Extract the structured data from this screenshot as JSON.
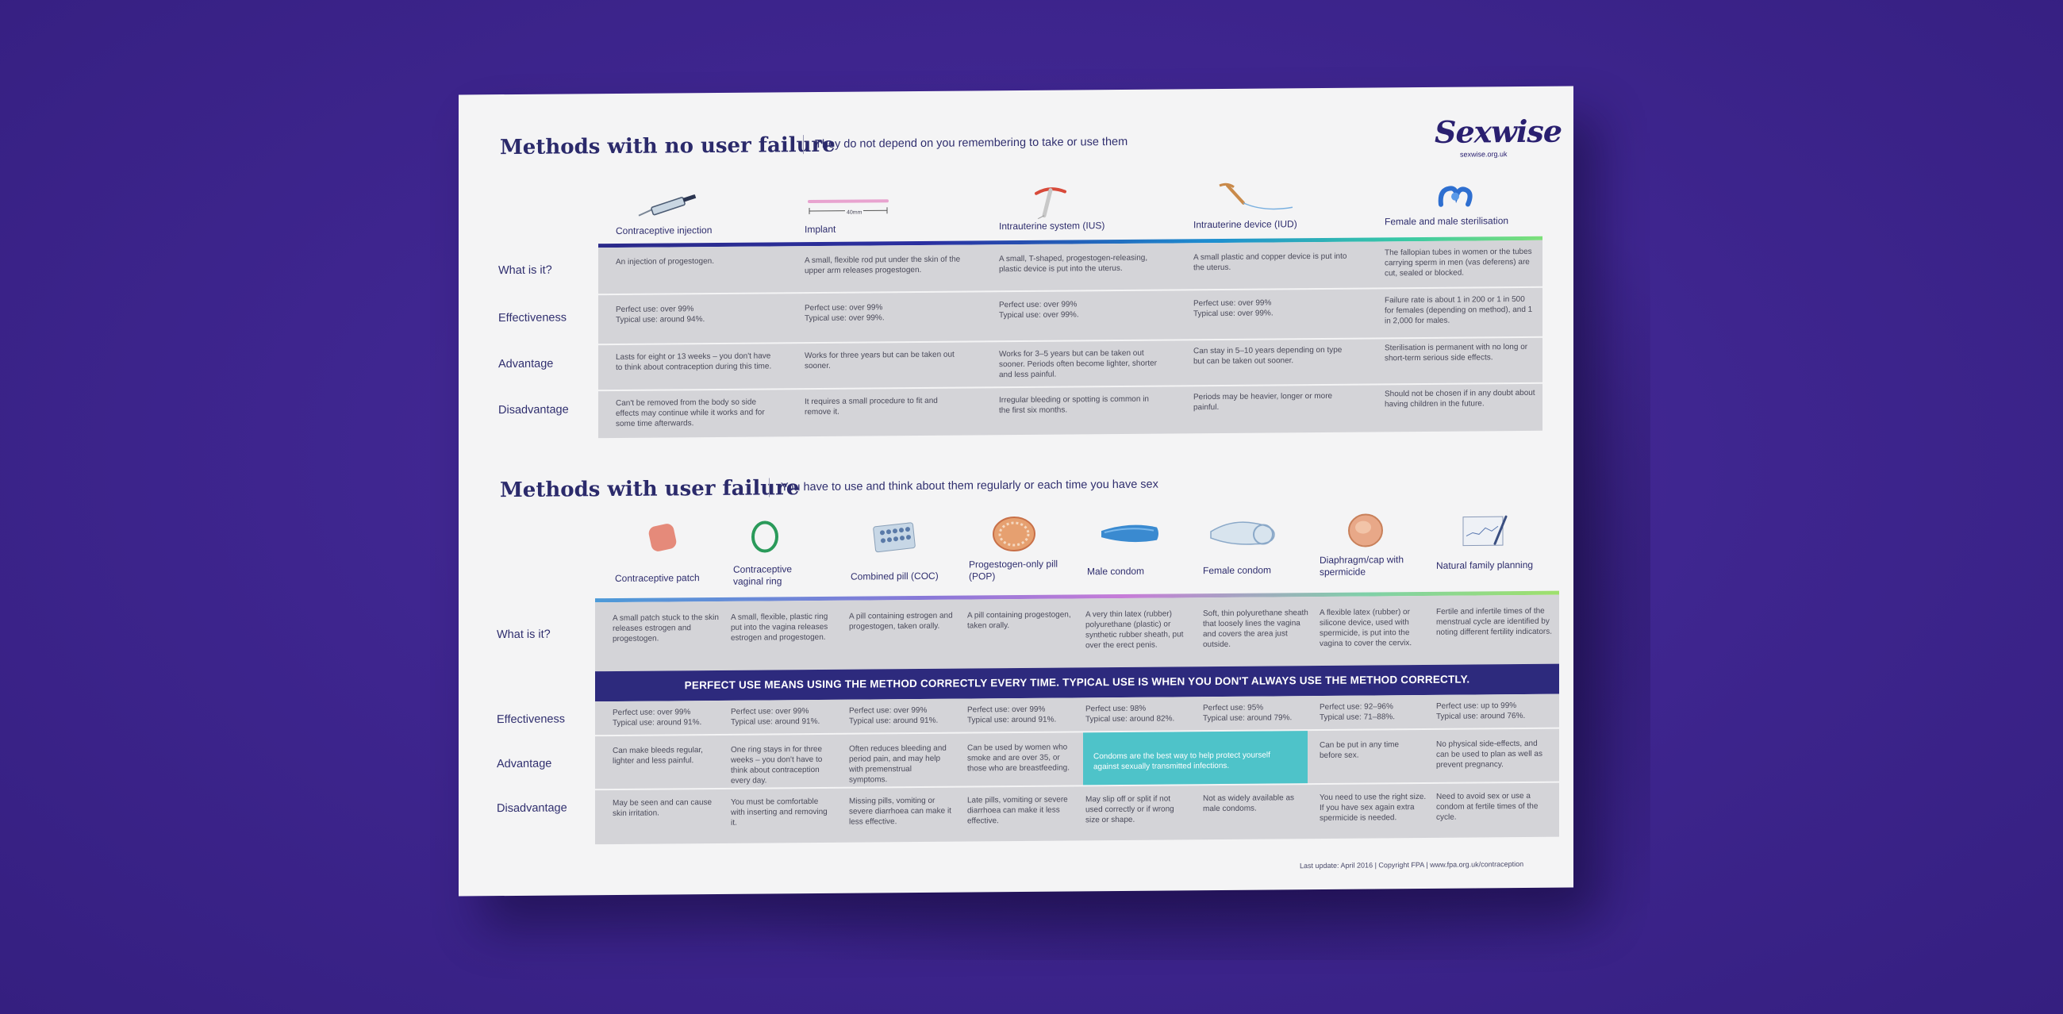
{
  "logo": {
    "text": "Sexwise",
    "url": "sexwise.org.uk"
  },
  "section1": {
    "title": "Methods with no user failure",
    "subtitle": "They do not depend on you remembering to take or use them",
    "columns": [
      "Contraceptive injection",
      "Implant",
      "Intrauterine system (IUS)",
      "Intrauterine device (IUD)",
      "Female and male sterilisation"
    ],
    "implant_measure": "40mm",
    "rows": [
      {
        "label": "What is it?",
        "cells": [
          "An injection of progestogen.",
          "A small, flexible rod put under the skin of the upper arm releases progestogen.",
          "A small, T-shaped, progestogen-releasing, plastic device is put into the uterus.",
          "A small plastic and copper device is put into the uterus.",
          "The fallopian tubes in women or the tubes carrying sperm in men (vas deferens) are cut, sealed or blocked."
        ]
      },
      {
        "label": "Effectiveness",
        "cells": [
          "Perfect use: over 99%\nTypical use: around 94%.",
          "Perfect use: over 99%\nTypical use: over 99%.",
          "Perfect use: over 99%\nTypical use: over 99%.",
          "Perfect use: over 99%\nTypical use: over 99%.",
          "Failure rate is about 1 in 200 or 1 in 500 for females (depending on method), and 1 in 2,000 for males."
        ]
      },
      {
        "label": "Advantage",
        "cells": [
          "Lasts for eight or 13 weeks – you don't have to think about contraception during this time.",
          "Works for three years but can be taken out sooner.",
          "Works for 3–5 years but can be taken out sooner. Periods often become lighter, shorter and less painful.",
          "Can stay in 5–10 years depending on type but can be taken out sooner.",
          "Sterilisation is permanent with no long or short-term serious side effects."
        ]
      },
      {
        "label": "Disadvantage",
        "cells": [
          "Can't be removed from the body so side effects may continue while it works and for some time afterwards.",
          "It requires a small procedure to fit and remove it.",
          "Irregular bleeding or spotting is common in the first six months.",
          "Periods may be heavier, longer or more painful.",
          "Should not be chosen if in any doubt about having children in the future."
        ]
      }
    ]
  },
  "section2": {
    "title": "Methods with user failure",
    "subtitle": "You have to use and think about them regularly or each time you have sex",
    "columns": [
      "Contraceptive patch",
      "Contraceptive vaginal ring",
      "Combined pill (COC)",
      "Progestogen-only pill (POP)",
      "Male condom",
      "Female condom",
      "Diaphragm/cap with spermicide",
      "Natural family planning"
    ],
    "what_label": "What is it?",
    "what_cells": [
      "A small patch stuck to the skin releases estrogen and progestogen.",
      "A small, flexible, plastic ring put into the vagina releases estrogen and progestogen.",
      "A pill containing estrogen and progestogen, taken orally.",
      "A pill containing progestogen, taken orally.",
      "A very thin latex (rubber) polyurethane (plastic) or synthetic rubber sheath, put over the erect penis.",
      "Soft, thin polyurethane sheath that loosely lines the vagina and covers the area just outside.",
      "A flexible latex (rubber) or silicone device, used with spermicide, is put into the vagina to cover the cervix.",
      "Fertile and infertile times of the menstrual cycle are identified by noting different fertility indicators."
    ],
    "banner": "PERFECT USE MEANS USING THE METHOD CORRECTLY EVERY TIME. TYPICAL USE IS WHEN YOU DON'T ALWAYS USE THE METHOD CORRECTLY.",
    "effectiveness_label": "Effectiveness",
    "effectiveness_cells": [
      "Perfect use: over 99%\nTypical use: around 91%.",
      "Perfect use: over 99%\nTypical use: around 91%.",
      "Perfect use: over 99%\nTypical use: around 91%.",
      "Perfect use: over 99%\nTypical use: around 91%.",
      "Perfect use: 98%\nTypical use: around 82%.",
      "Perfect use: 95%\nTypical use: around 79%.",
      "Perfect use: 92–96%\nTypical use: 71–88%.",
      "Perfect use: up to 99%\nTypical use: around 76%."
    ],
    "advantage_label": "Advantage",
    "advantage_cells": [
      "Can make bleeds regular, lighter and less painful.",
      "One ring stays in for three weeks – you don't have to think about contraception every day.",
      "Often reduces bleeding and period pain, and may help with premenstrual symptoms.",
      "Can be used by women who smoke and are over 35, or those who are breastfeeding.",
      "Condoms are the best way to help protect yourself against sexually transmitted infections.",
      "Can be put in any time before sex.",
      "No physical side-effects, and can be used to plan as well as prevent pregnancy."
    ],
    "disadvantage_label": "Disadvantage",
    "disadvantage_cells": [
      "May be seen and can cause skin irritation.",
      "You must be comfortable with inserting and removing it.",
      "Missing pills, vomiting or severe diarrhoea can make it less effective.",
      "Late pills, vomiting or severe diarrhoea can make it less effective.",
      "May slip off or split if not used correctly or if wrong size or shape.",
      "Not as widely available as male condoms.",
      "You need to use the right size. If you have sex again extra spermicide is needed.",
      "Need to avoid sex or use a condom at fertile times of the cycle."
    ]
  },
  "footer": "Last update: April 2016  |  Copyright FPA  |  www.fpa.org.uk/contraception",
  "colors": {
    "navy": "#2d2a7d",
    "teal": "#4ec3c9",
    "band": "#d4d4d8",
    "background": "#3f2690"
  }
}
